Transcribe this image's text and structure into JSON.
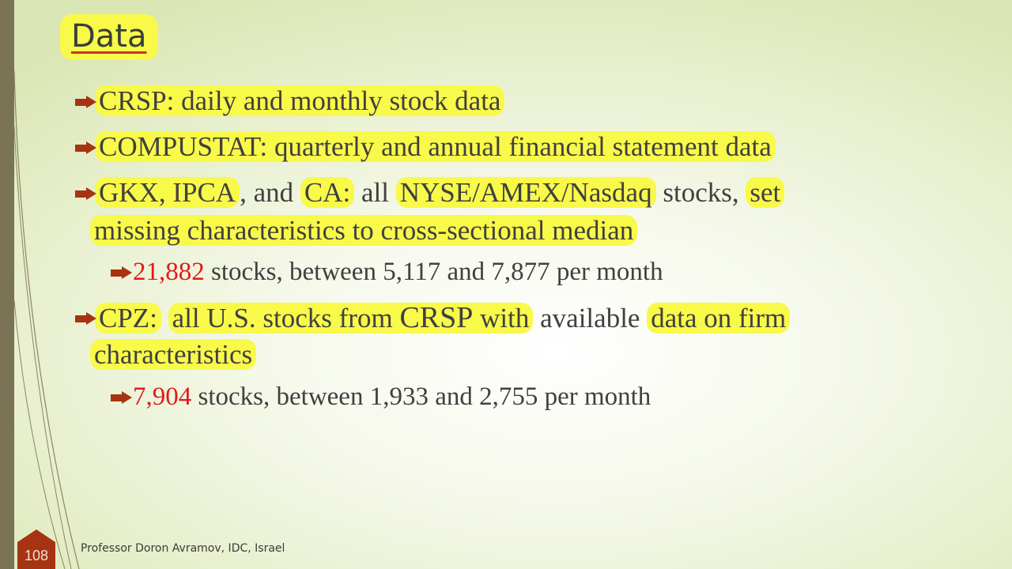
{
  "slide": {
    "title": "Data",
    "page_number": "108",
    "footer": "Professor Doron Avramov, IDC, Israel"
  },
  "bullets": {
    "b1": "CRSP: daily and monthly stock data",
    "b2": "COMPUSTAT: quarterly and annual financial statement data",
    "b3": {
      "gkx": "GKX, IPCA",
      "and": ", and ",
      "ca": "CA:",
      "all": " all ",
      "exchanges": "NYSE/AMEX/Nasdaq",
      "stocks": " stocks, ",
      "set": "set",
      "line2": "missing characteristics to cross-sectional median"
    },
    "b3_sub": {
      "count": "21,882",
      "rest": " stocks, between 5,117 and 7,877 per month"
    },
    "b4": {
      "cpz": "CPZ:",
      "space1": " ",
      "all_us": "all U.S. stocks from ",
      "crsp": "CRSP",
      "with": " with",
      "available": " available ",
      "data_on": "data on firm",
      "line2": "characteristics"
    },
    "b4_sub": {
      "count": "7,904",
      "rest": " stocks, between 1,933 and 2,755 per month"
    }
  },
  "colors": {
    "highlight": "#f9f94a",
    "accent_red": "#e01b1b",
    "bullet_arrow": "#a63412",
    "left_band": "#7a7356"
  }
}
